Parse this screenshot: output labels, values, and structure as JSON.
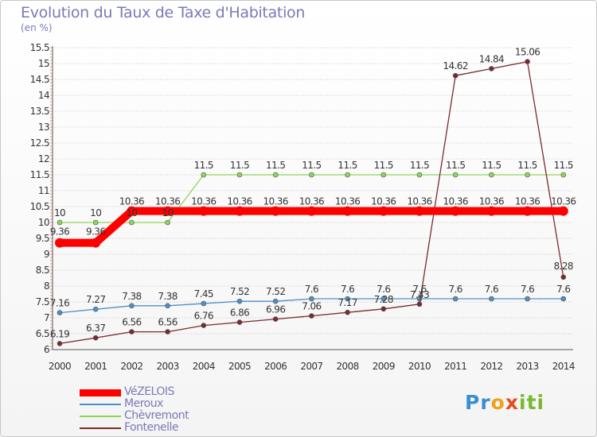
{
  "title": "Evolution du Taux de Taxe d'Habitation",
  "unit": "(en %)",
  "logo": [
    {
      "ch": "P",
      "color": "#3a8fd0"
    },
    {
      "ch": "r",
      "color": "#3a8fd0"
    },
    {
      "ch": "o",
      "color": "#f0a020"
    },
    {
      "ch": "x",
      "color": "#e84a1e"
    },
    {
      "ch": "i",
      "color": "#7ab830"
    },
    {
      "ch": "t",
      "color": "#7ab830"
    },
    {
      "ch": "i",
      "color": "#7ab830"
    }
  ],
  "chart_data": {
    "type": "line",
    "x": [
      2000,
      2001,
      2002,
      2003,
      2004,
      2005,
      2006,
      2007,
      2008,
      2009,
      2010,
      2011,
      2012,
      2013,
      2014
    ],
    "ylim": [
      6,
      15.5
    ],
    "yticks": [
      "6",
      "6.5",
      "7",
      "7.5",
      "8",
      "8.5",
      "9",
      "9.5",
      "10",
      "10.5",
      "11",
      "11.5",
      "12",
      "12.5",
      "13",
      "13.5",
      "14",
      "14.5",
      "15",
      "15.5"
    ],
    "grid": "horizontal dotted",
    "legend_position": "bottom-left",
    "series": [
      {
        "name": "VéZELOIS",
        "color": "#ff0000",
        "thick": true,
        "values": [
          9.36,
          9.36,
          10.36,
          10.36,
          10.36,
          10.36,
          10.36,
          10.36,
          10.36,
          10.36,
          10.36,
          10.36,
          10.36,
          10.36,
          10.36
        ],
        "labels": [
          "9.36",
          "9.36",
          "10.36",
          "10.36",
          "10.36",
          "10.36",
          "10.36",
          "10.36",
          "10.36",
          "10.36",
          "10.36",
          "10.36",
          "10.36",
          "10.36",
          "10.36"
        ]
      },
      {
        "name": "Meroux",
        "color": "#4f8fc8",
        "thick": false,
        "values": [
          7.16,
          7.27,
          7.38,
          7.38,
          7.45,
          7.52,
          7.52,
          7.6,
          7.6,
          7.6,
          7.6,
          7.6,
          7.6,
          7.6,
          7.6
        ],
        "labels": [
          "7.16",
          "7.27",
          "7.38",
          "7.38",
          "7.45",
          "7.52",
          "7.52",
          "7.6",
          "7.6",
          "7.6",
          "7.6",
          "7.6",
          "7.6",
          "7.6",
          "7.6"
        ]
      },
      {
        "name": "Chèvremont",
        "color": "#8fd45a",
        "thick": false,
        "values": [
          10,
          10,
          10,
          10,
          11.5,
          11.5,
          11.5,
          11.5,
          11.5,
          11.5,
          11.5,
          11.5,
          11.5,
          11.5,
          11.5
        ],
        "labels": [
          "10",
          "10",
          "10",
          "10",
          "11.5",
          "11.5",
          "11.5",
          "11.5",
          "11.5",
          "11.5",
          "11.5",
          "11.5",
          "11.5",
          "11.5",
          "11.5"
        ]
      },
      {
        "name": "Fontenelle",
        "color": "#7a2a30",
        "thick": false,
        "values": [
          6.19,
          6.37,
          6.56,
          6.56,
          6.76,
          6.86,
          6.96,
          7.06,
          7.17,
          7.28,
          7.43,
          14.62,
          14.84,
          15.06,
          8.28
        ],
        "labels": [
          "6.19",
          "6.37",
          "6.56",
          "6.56",
          "6.76",
          "6.86",
          "6.96",
          "7.06",
          "7.17",
          "7.28",
          "7.43",
          "14.62",
          "14.84",
          "15.06",
          "8.28"
        ]
      }
    ]
  }
}
